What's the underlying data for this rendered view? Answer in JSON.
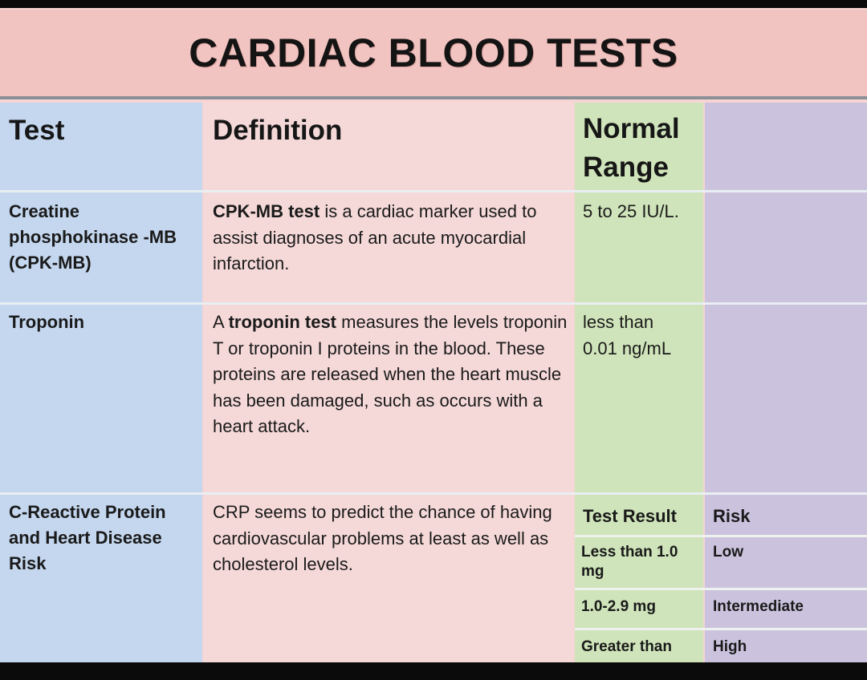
{
  "title": "CARDIAC BLOOD TESTS",
  "headers": {
    "test": "Test",
    "definition": "Definition",
    "normal_range_line1": "Normal",
    "normal_range_line2": "Range"
  },
  "rows": [
    {
      "test_lines": [
        "Creatine",
        "phosphokinase -MB",
        "(CPK-MB)"
      ],
      "definition_bold": "CPK-MB test",
      "definition_rest": " is a cardiac marker used to assist diagnoses of an acute myocardial infarction.",
      "range": "5 to 25 IU/L."
    },
    {
      "test_lines": [
        "Troponin"
      ],
      "definition_pre": "A ",
      "definition_bold": "troponin test",
      "definition_rest": " measures the levels troponin T or troponin I proteins in the blood. These proteins are released when the heart muscle has been damaged, such as occurs with a heart attack.",
      "range_line1": "less than",
      "range_line2": "0.01 ng/mL"
    },
    {
      "test_lines": [
        "C-Reactive Protein",
        "and Heart Disease",
        "Risk"
      ],
      "definition": "CRP seems to predict the chance of having cardiovascular problems at least as well as cholesterol levels."
    }
  ],
  "crp_table": {
    "header_result": "Test Result",
    "header_risk": "Risk",
    "rows": [
      {
        "result": "Less than 1.0 mg",
        "risk": "Low"
      },
      {
        "result": "1.0-2.9 mg",
        "risk": "Intermediate"
      },
      {
        "result": "Greater than",
        "risk": "High"
      }
    ]
  }
}
